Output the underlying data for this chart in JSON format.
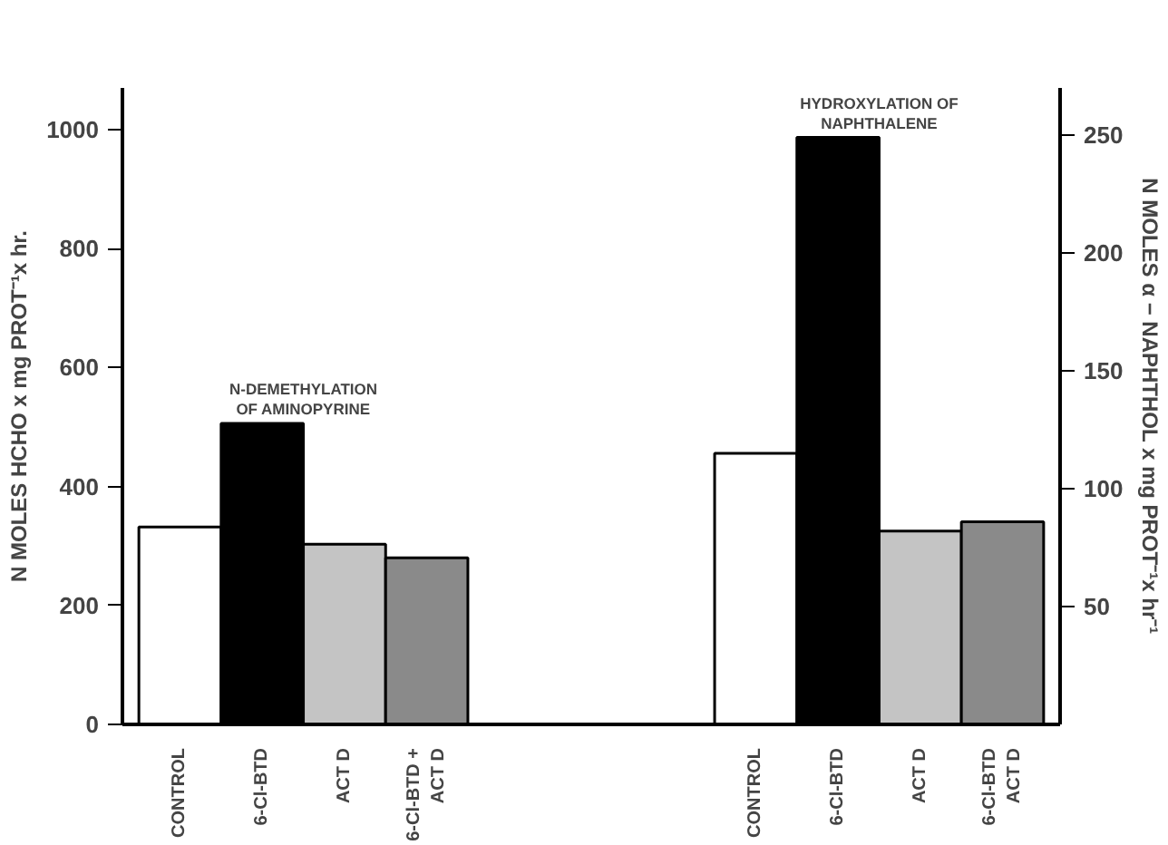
{
  "chart_data": {
    "type": "bar",
    "categories": [
      "CONTROL",
      "6-Cl-BTD",
      "ACT D",
      "6-Cl-BTD +\nACT D",
      null,
      null,
      null,
      "CONTROL",
      "6-Cl-BTD",
      "ACT D",
      "6-Cl-BTD\nACT D"
    ],
    "series": [
      {
        "colors": [
          "#ffffff",
          "#000000",
          "#c4c4c4",
          "#8a8a8a",
          null,
          null,
          null,
          null,
          null,
          null,
          null
        ],
        "values": [
          332,
          506,
          303,
          280,
          null,
          null,
          null,
          null,
          null,
          null,
          null
        ]
      },
      {
        "axis": "y2",
        "colors": [
          null,
          null,
          null,
          null,
          null,
          null,
          null,
          "#ffffff",
          "#000000",
          "#c4c4c4",
          "#8a8a8a"
        ],
        "values": [
          null,
          null,
          null,
          null,
          null,
          null,
          null,
          115,
          249,
          82,
          86
        ]
      }
    ],
    "ylabel": "N MOLES HCHO x mg PROT⁻¹x hr.",
    "y2label": "N MOLES α − NAPHTHOL x mg PROT⁻¹x hr⁻¹",
    "ylim": [
      0,
      1070
    ],
    "yticks": [
      0,
      200,
      400,
      600,
      800,
      1000
    ],
    "y2lim": [
      0,
      270
    ],
    "y2ticks": [
      50,
      100,
      150,
      200,
      250
    ],
    "annotations": [
      "N-DEMETHYLATION\nOF AMINOPYRINE",
      "HYDROXYLATION OF\nNAPHTHALENE"
    ],
    "grid": false
  }
}
